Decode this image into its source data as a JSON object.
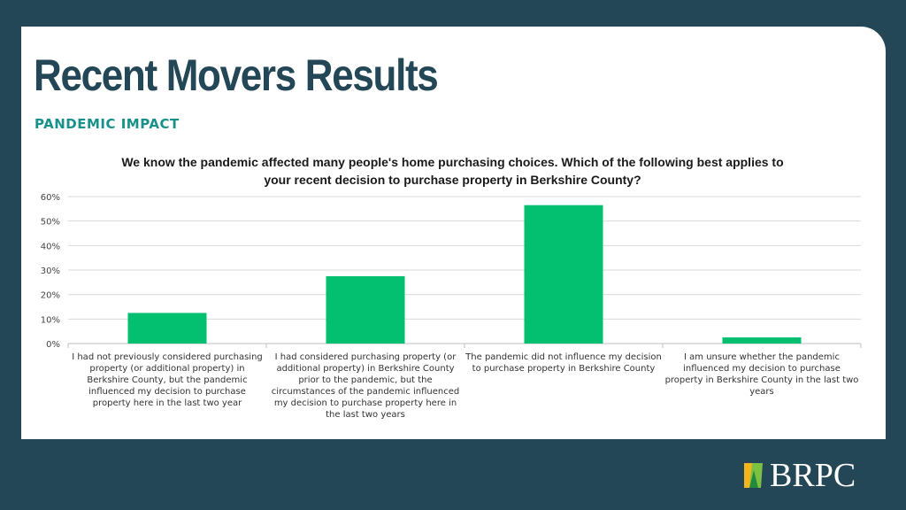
{
  "slide": {
    "title": "Recent Movers Results",
    "subtitle": "PANDEMIC IMPACT",
    "logo_text": "BRPC"
  },
  "chart_data": {
    "type": "bar",
    "title": "We know the pandemic affected many people's home purchasing choices. Which of the following best applies to your recent decision to purchase property in Berkshire County?",
    "categories": [
      "I had not previously considered purchasing property (or additional property) in Berkshire County, but the pandemic influenced my decision to purchase property here in the last two year",
      "I had considered purchasing property (or additional property) in Berkshire County prior to the pandemic, but the circumstances of the pandemic influenced my decision to purchase property here in the last two years",
      "The pandemic did not influence my decision to purchase property in Berkshire County",
      "I am unsure whether the pandemic influenced my decision to purchase property in Berkshire County in the last two  years"
    ],
    "values": [
      0.125,
      0.275,
      0.565,
      0.025
    ],
    "ylim": [
      0,
      0.6
    ],
    "yticks": [
      "0%",
      "10%",
      "20%",
      "30%",
      "40%",
      "50%",
      "60%"
    ],
    "bar_color": "#02c070",
    "grid": true,
    "xlabel": "",
    "ylabel": ""
  },
  "colors": {
    "background": "#234756",
    "title": "#234756",
    "subtitle": "#17918a",
    "bar": "#02c070"
  }
}
